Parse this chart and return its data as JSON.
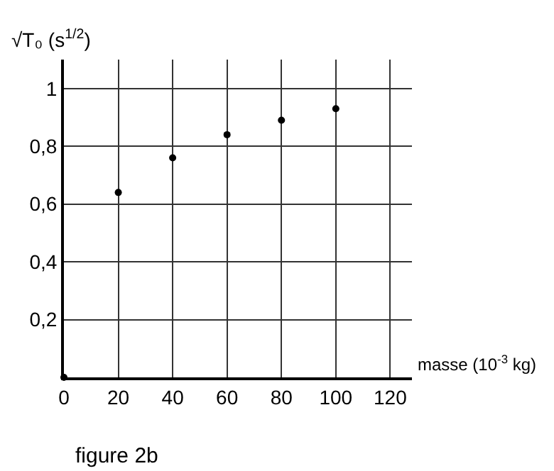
{
  "chart_data": {
    "type": "scatter",
    "xlabel": "masse (10$^{-3}$ kg)",
    "ylabel": "√T₀ (s$^{1/2}$)",
    "x": [
      0,
      20,
      40,
      60,
      80,
      100
    ],
    "series": [
      {
        "color": "#000000",
        "values": [
          0,
          0.64,
          0.76,
          0.84,
          0.89,
          0.93
        ]
      }
    ],
    "xlim": [
      0,
      128
    ],
    "xticks": [
      0,
      20,
      40,
      60,
      80,
      100,
      120
    ],
    "ylim": [
      0,
      1.1
    ],
    "yticks": [
      {
        "value": 0.2,
        "label": "0,2"
      },
      {
        "value": 0.4,
        "label": "0,4"
      },
      {
        "value": 0.6,
        "label": "0,6"
      },
      {
        "value": 0.8,
        "label": "0,8"
      },
      {
        "value": 1,
        "label": "1"
      }
    ],
    "grid": true,
    "marker": "circle",
    "annotations": [
      "figure 2b"
    ]
  }
}
